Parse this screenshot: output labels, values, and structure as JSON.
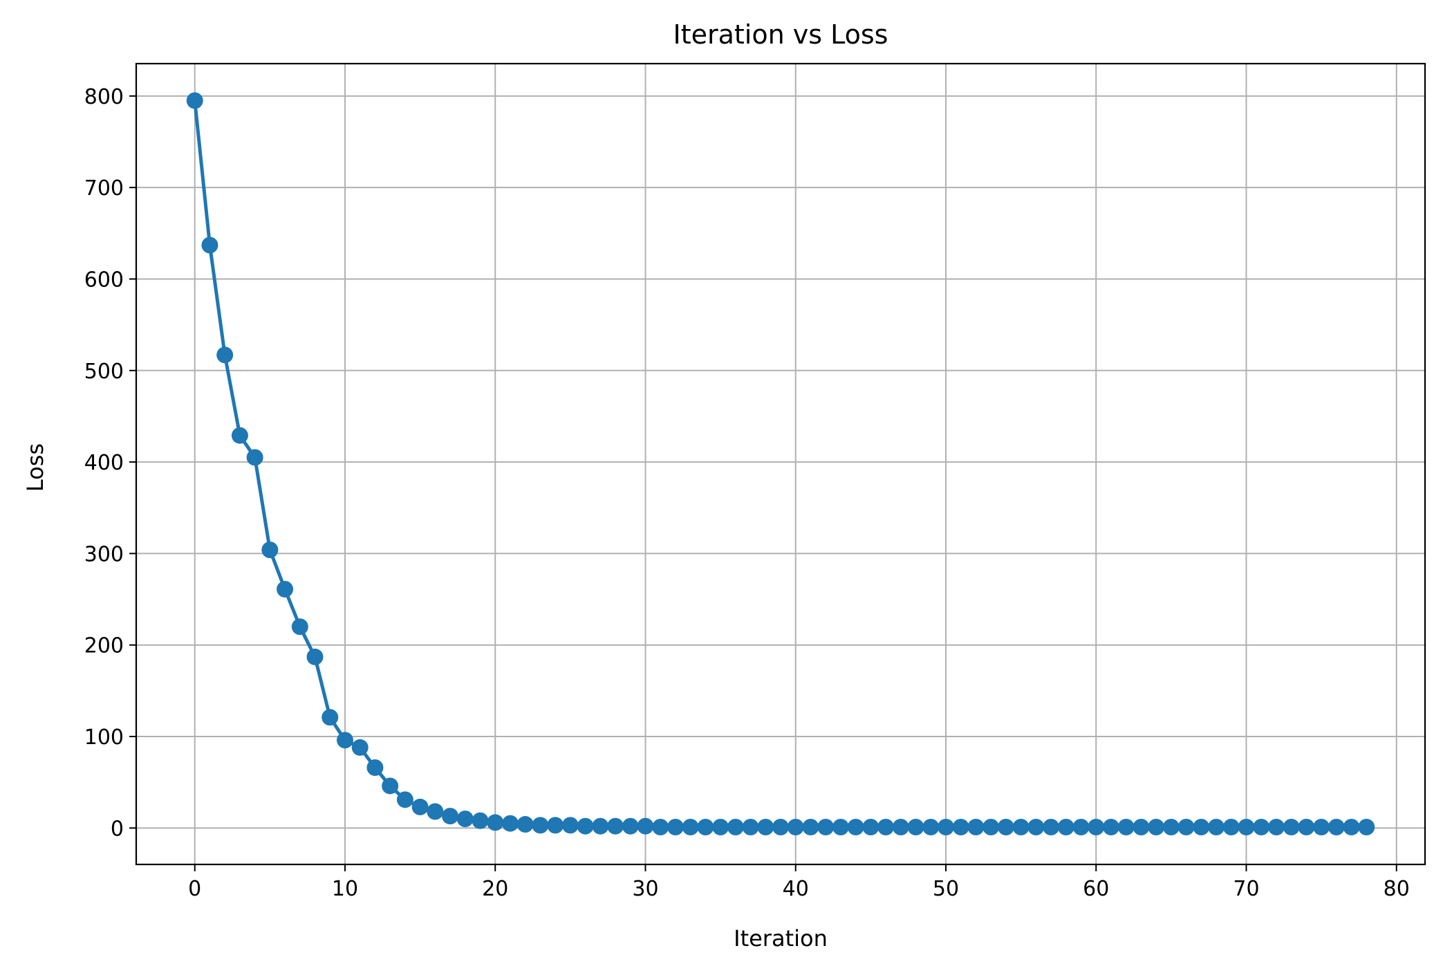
{
  "chart_data": {
    "type": "line",
    "title": "Iteration vs Loss",
    "xlabel": "Iteration",
    "ylabel": "Loss",
    "xlim": [
      -3.9,
      81.9
    ],
    "ylim": [
      -39.8,
      835.4
    ],
    "grid": true,
    "marker": "circle",
    "color": "#1f77b4",
    "xticks": [
      0,
      10,
      20,
      30,
      40,
      50,
      60,
      70,
      80
    ],
    "yticks": [
      0,
      100,
      200,
      300,
      400,
      500,
      600,
      700,
      800
    ],
    "series": [
      {
        "x": [
          0,
          1,
          2,
          3,
          4,
          5,
          6,
          7,
          8,
          9,
          10,
          11,
          12,
          13,
          14,
          15,
          16,
          17,
          18,
          19,
          20,
          21,
          22,
          23,
          24,
          25,
          26,
          27,
          28,
          29,
          30,
          31,
          32,
          33,
          34,
          35,
          36,
          37,
          38,
          39,
          40,
          41,
          42,
          43,
          44,
          45,
          46,
          47,
          48,
          49,
          50,
          51,
          52,
          53,
          54,
          55,
          56,
          57,
          58,
          59,
          60,
          61,
          62,
          63,
          64,
          65,
          66,
          67,
          68,
          69,
          70,
          71,
          72,
          73,
          74,
          75,
          76,
          77,
          78
        ],
        "y": [
          795,
          637,
          517,
          429,
          405,
          304,
          261,
          220,
          187,
          121,
          96,
          88,
          66,
          46,
          31,
          23,
          18,
          13,
          10,
          8,
          6,
          5,
          4,
          3,
          3,
          3,
          2,
          2,
          2,
          2,
          2,
          1,
          1,
          1,
          1,
          1,
          1,
          1,
          1,
          1,
          1,
          1,
          1,
          1,
          1,
          1,
          1,
          1,
          1,
          1,
          1,
          1,
          1,
          1,
          1,
          1,
          1,
          1,
          1,
          1,
          1,
          1,
          1,
          1,
          1,
          1,
          1,
          1,
          1,
          1,
          1,
          1,
          1,
          1,
          1,
          1,
          1,
          1,
          1
        ]
      }
    ]
  }
}
